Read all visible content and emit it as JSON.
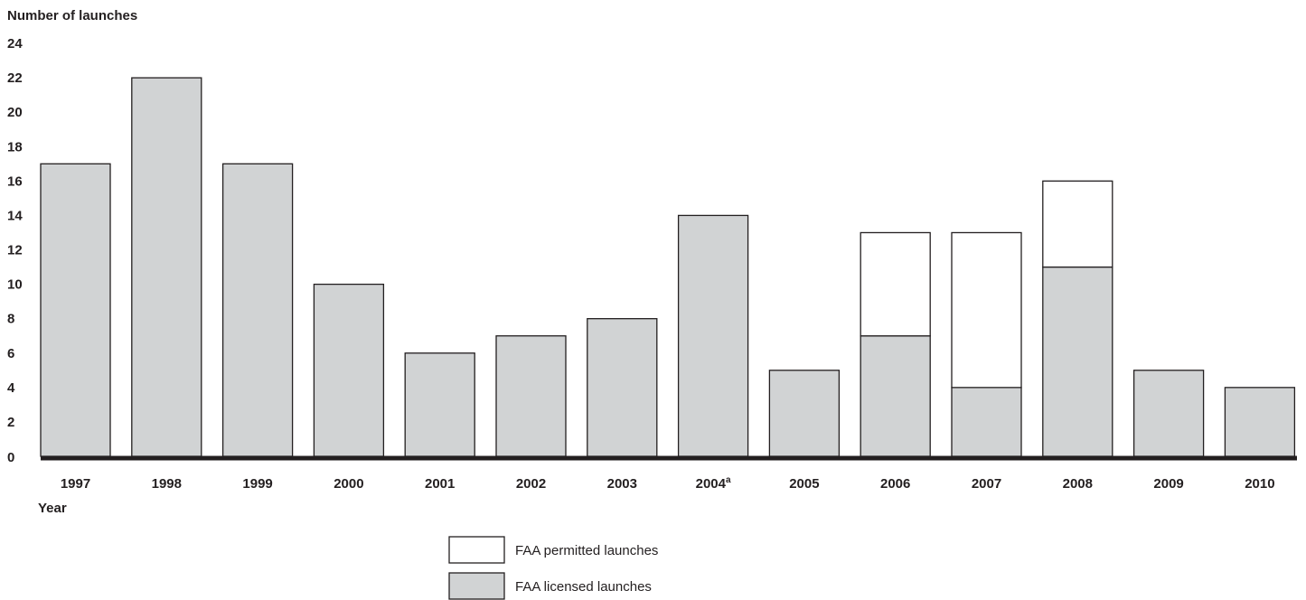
{
  "chart_data": {
    "type": "bar",
    "stacked": true,
    "ylabel": "Number of launches",
    "xlabel": "Year",
    "ylim": [
      0,
      24
    ],
    "yticks": [
      0,
      2,
      4,
      6,
      8,
      10,
      12,
      14,
      16,
      18,
      20,
      22,
      24
    ],
    "grid": false,
    "legend_position": "bottom-center",
    "categories": [
      {
        "label": "1997",
        "sup": ""
      },
      {
        "label": "1998",
        "sup": ""
      },
      {
        "label": "1999",
        "sup": ""
      },
      {
        "label": "2000",
        "sup": ""
      },
      {
        "label": "2001",
        "sup": ""
      },
      {
        "label": "2002",
        "sup": ""
      },
      {
        "label": "2003",
        "sup": ""
      },
      {
        "label": "2004",
        "sup": "a"
      },
      {
        "label": "2005",
        "sup": ""
      },
      {
        "label": "2006",
        "sup": ""
      },
      {
        "label": "2007",
        "sup": ""
      },
      {
        "label": "2008",
        "sup": ""
      },
      {
        "label": "2009",
        "sup": ""
      },
      {
        "label": "2010",
        "sup": ""
      }
    ],
    "series": [
      {
        "name": "FAA licensed launches",
        "color": "#d1d3d4",
        "values": [
          17,
          22,
          17,
          10,
          6,
          7,
          8,
          14,
          5,
          7,
          4,
          11,
          5,
          4
        ]
      },
      {
        "name": "FAA permitted launches",
        "color": "#ffffff",
        "values": [
          0,
          0,
          0,
          0,
          0,
          0,
          0,
          0,
          0,
          6,
          9,
          5,
          0,
          0
        ]
      }
    ],
    "legend_order": [
      1,
      0
    ]
  },
  "colors": {
    "axis": "#231f20",
    "bar_stroke": "#231f20"
  }
}
